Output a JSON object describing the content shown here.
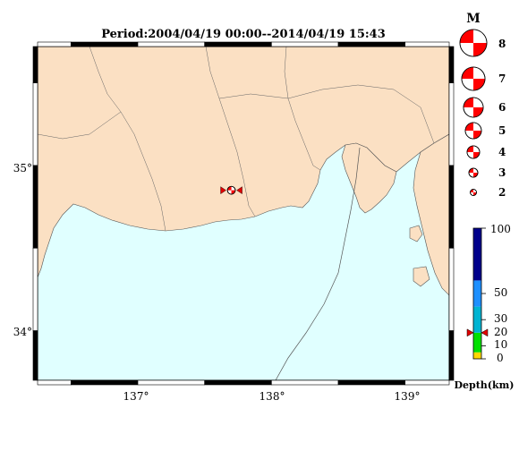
{
  "title": "Period:2004/04/19 00:00--2014/04/19 15:43",
  "map": {
    "lon_ticks": [
      {
        "value": 137,
        "label": "137°"
      },
      {
        "value": 138,
        "label": "138°"
      },
      {
        "value": 139,
        "label": "139°"
      }
    ],
    "lat_ticks": [
      {
        "value": 35,
        "label": "35°"
      },
      {
        "value": 34,
        "label": "34°"
      }
    ],
    "colors": {
      "land": "#fbe0c3",
      "sea": "#e0ffff",
      "border": "#000000"
    }
  },
  "magnitude_legend": {
    "title": "M",
    "entries": [
      {
        "m": 8,
        "label": "8"
      },
      {
        "m": 7,
        "label": "7"
      },
      {
        "m": 6,
        "label": "6"
      },
      {
        "m": 5,
        "label": "5"
      },
      {
        "m": 4,
        "label": "4"
      },
      {
        "m": 3,
        "label": "3"
      },
      {
        "m": 2,
        "label": "2"
      }
    ],
    "color": "#ff0000"
  },
  "depth_legend": {
    "title": "Depth(km)",
    "ticks": [
      {
        "value": 100,
        "label": "100"
      },
      {
        "value": 50,
        "label": "50"
      },
      {
        "value": 30,
        "label": "30"
      },
      {
        "value": 20,
        "label": "20"
      },
      {
        "value": 10,
        "label": "10"
      },
      {
        "value": 0,
        "label": "0"
      }
    ],
    "bands": [
      {
        "from": 0,
        "to": 5,
        "color": "#ffd700"
      },
      {
        "from": 5,
        "to": 20,
        "color": "#00e000"
      },
      {
        "from": 20,
        "to": 40,
        "color": "#00b4d2"
      },
      {
        "from": 40,
        "to": 60,
        "color": "#1e90ff"
      },
      {
        "from": 60,
        "to": 100,
        "color": "#00008b"
      }
    ],
    "marker_depth": 20
  },
  "events": [
    {
      "lon": 137.7,
      "lat": 34.85,
      "depth": 15,
      "m": 3,
      "color": "#ff0000"
    }
  ]
}
